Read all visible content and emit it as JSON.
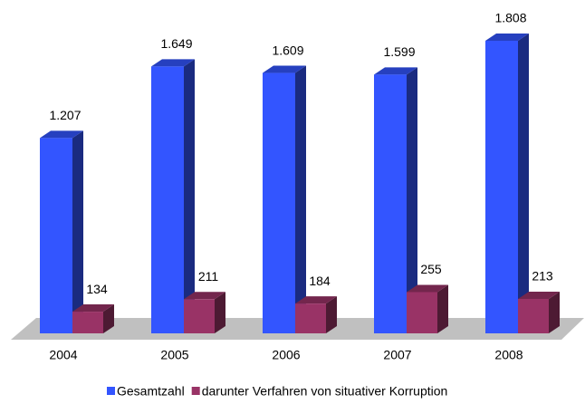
{
  "chart_data": {
    "type": "bar3d",
    "categories": [
      "2004",
      "2005",
      "2006",
      "2007",
      "2008"
    ],
    "series": [
      {
        "name": "Gesamtzahl",
        "color": "#3355ff",
        "values": [
          1207,
          1649,
          1609,
          1599,
          1808
        ],
        "value_labels": [
          "1.207",
          "1.649",
          "1.609",
          "1.599",
          "1.808"
        ]
      },
      {
        "name": "darunter Verfahren von situativer Korruption",
        "color": "#993366",
        "values": [
          134,
          211,
          184,
          255,
          213
        ]
      }
    ]
  }
}
